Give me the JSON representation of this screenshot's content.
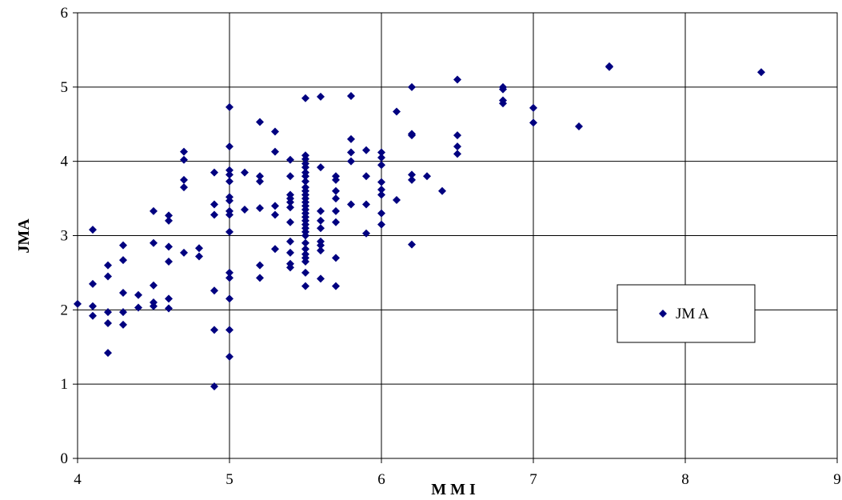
{
  "chart_data": {
    "type": "scatter",
    "xlabel": "M M I",
    "ylabel": "JMA",
    "xlim": [
      4,
      9
    ],
    "ylim": [
      0,
      6
    ],
    "x_ticks": [
      "4",
      "5",
      "6",
      "7",
      "8",
      "9"
    ],
    "y_ticks": [
      "0",
      "1",
      "2",
      "3",
      "4",
      "5",
      "6"
    ],
    "grid": true,
    "legend_position": "right",
    "marker": "diamond",
    "color": "#000080",
    "series": [
      {
        "name": "JM A",
        "points": [
          [
            4.0,
            2.08
          ],
          [
            4.1,
            3.08
          ],
          [
            4.1,
            2.35
          ],
          [
            4.1,
            2.05
          ],
          [
            4.1,
            1.92
          ],
          [
            4.2,
            2.6
          ],
          [
            4.2,
            2.45
          ],
          [
            4.2,
            1.97
          ],
          [
            4.2,
            1.82
          ],
          [
            4.2,
            1.42
          ],
          [
            4.3,
            2.87
          ],
          [
            4.3,
            2.67
          ],
          [
            4.3,
            2.23
          ],
          [
            4.3,
            1.97
          ],
          [
            4.3,
            1.8
          ],
          [
            4.4,
            2.2
          ],
          [
            4.4,
            2.03
          ],
          [
            4.5,
            3.33
          ],
          [
            4.5,
            2.9
          ],
          [
            4.5,
            2.33
          ],
          [
            4.5,
            2.1
          ],
          [
            4.5,
            2.05
          ],
          [
            4.6,
            3.27
          ],
          [
            4.6,
            3.2
          ],
          [
            4.6,
            2.85
          ],
          [
            4.6,
            2.65
          ],
          [
            4.6,
            2.15
          ],
          [
            4.6,
            2.02
          ],
          [
            4.7,
            4.13
          ],
          [
            4.7,
            4.02
          ],
          [
            4.7,
            3.75
          ],
          [
            4.7,
            3.65
          ],
          [
            4.7,
            2.77
          ],
          [
            4.8,
            2.83
          ],
          [
            4.8,
            2.72
          ],
          [
            4.9,
            3.85
          ],
          [
            4.9,
            3.42
          ],
          [
            4.9,
            3.28
          ],
          [
            4.9,
            2.26
          ],
          [
            4.9,
            1.73
          ],
          [
            4.9,
            0.97
          ],
          [
            5.0,
            4.73
          ],
          [
            5.0,
            4.2
          ],
          [
            5.0,
            3.88
          ],
          [
            5.0,
            3.82
          ],
          [
            5.0,
            3.73
          ],
          [
            5.0,
            3.52
          ],
          [
            5.0,
            3.47
          ],
          [
            5.0,
            3.33
          ],
          [
            5.0,
            3.28
          ],
          [
            5.0,
            3.05
          ],
          [
            5.0,
            2.5
          ],
          [
            5.0,
            2.43
          ],
          [
            5.0,
            2.15
          ],
          [
            5.0,
            1.73
          ],
          [
            5.0,
            1.37
          ],
          [
            5.1,
            3.85
          ],
          [
            5.1,
            3.35
          ],
          [
            5.2,
            4.53
          ],
          [
            5.2,
            3.8
          ],
          [
            5.2,
            3.73
          ],
          [
            5.2,
            3.37
          ],
          [
            5.2,
            2.6
          ],
          [
            5.2,
            2.43
          ],
          [
            5.3,
            4.4
          ],
          [
            5.3,
            4.13
          ],
          [
            5.3,
            3.4
          ],
          [
            5.3,
            3.28
          ],
          [
            5.3,
            2.82
          ],
          [
            5.4,
            4.02
          ],
          [
            5.4,
            3.8
          ],
          [
            5.4,
            3.55
          ],
          [
            5.4,
            3.5
          ],
          [
            5.4,
            3.45
          ],
          [
            5.4,
            3.38
          ],
          [
            5.4,
            3.18
          ],
          [
            5.4,
            2.92
          ],
          [
            5.4,
            2.77
          ],
          [
            5.4,
            2.62
          ],
          [
            5.4,
            2.57
          ],
          [
            5.5,
            4.85
          ],
          [
            5.5,
            4.08
          ],
          [
            5.5,
            4.03
          ],
          [
            5.5,
            3.97
          ],
          [
            5.5,
            3.92
          ],
          [
            5.5,
            3.85
          ],
          [
            5.5,
            3.8
          ],
          [
            5.5,
            3.73
          ],
          [
            5.5,
            3.65
          ],
          [
            5.5,
            3.6
          ],
          [
            5.5,
            3.55
          ],
          [
            5.5,
            3.5
          ],
          [
            5.5,
            3.45
          ],
          [
            5.5,
            3.4
          ],
          [
            5.5,
            3.35
          ],
          [
            5.5,
            3.3
          ],
          [
            5.5,
            3.25
          ],
          [
            5.5,
            3.2
          ],
          [
            5.5,
            3.15
          ],
          [
            5.5,
            3.1
          ],
          [
            5.5,
            3.05
          ],
          [
            5.5,
            3.0
          ],
          [
            5.5,
            2.9
          ],
          [
            5.5,
            2.82
          ],
          [
            5.5,
            2.75
          ],
          [
            5.5,
            2.7
          ],
          [
            5.5,
            2.65
          ],
          [
            5.5,
            2.5
          ],
          [
            5.5,
            2.32
          ],
          [
            5.6,
            4.87
          ],
          [
            5.6,
            3.92
          ],
          [
            5.6,
            3.33
          ],
          [
            5.6,
            3.2
          ],
          [
            5.6,
            3.1
          ],
          [
            5.6,
            2.92
          ],
          [
            5.6,
            2.87
          ],
          [
            5.6,
            2.8
          ],
          [
            5.6,
            2.42
          ],
          [
            5.7,
            3.8
          ],
          [
            5.7,
            3.75
          ],
          [
            5.7,
            3.6
          ],
          [
            5.7,
            3.5
          ],
          [
            5.7,
            3.33
          ],
          [
            5.7,
            3.18
          ],
          [
            5.7,
            2.7
          ],
          [
            5.7,
            2.32
          ],
          [
            5.8,
            4.88
          ],
          [
            5.8,
            4.3
          ],
          [
            5.8,
            4.12
          ],
          [
            5.8,
            4.0
          ],
          [
            5.8,
            3.42
          ],
          [
            5.9,
            4.15
          ],
          [
            5.9,
            3.8
          ],
          [
            5.9,
            3.42
          ],
          [
            5.9,
            3.03
          ],
          [
            6.0,
            4.12
          ],
          [
            6.0,
            4.05
          ],
          [
            6.0,
            3.95
          ],
          [
            6.0,
            3.72
          ],
          [
            6.0,
            3.62
          ],
          [
            6.0,
            3.55
          ],
          [
            6.0,
            3.3
          ],
          [
            6.0,
            3.15
          ],
          [
            6.1,
            4.67
          ],
          [
            6.1,
            3.48
          ],
          [
            6.2,
            5.0
          ],
          [
            6.2,
            4.37
          ],
          [
            6.2,
            4.35
          ],
          [
            6.2,
            3.82
          ],
          [
            6.2,
            3.75
          ],
          [
            6.2,
            2.88
          ],
          [
            6.3,
            3.8
          ],
          [
            6.4,
            3.6
          ],
          [
            6.5,
            5.1
          ],
          [
            6.5,
            4.35
          ],
          [
            6.5,
            4.2
          ],
          [
            6.5,
            4.1
          ],
          [
            6.8,
            5.0
          ],
          [
            6.8,
            4.97
          ],
          [
            6.8,
            4.82
          ],
          [
            6.8,
            4.78
          ],
          [
            7.0,
            4.72
          ],
          [
            7.0,
            4.52
          ],
          [
            7.3,
            4.47
          ],
          [
            7.5,
            5.28
          ],
          [
            7.5,
            5.27
          ],
          [
            8.5,
            5.2
          ]
        ]
      }
    ]
  }
}
